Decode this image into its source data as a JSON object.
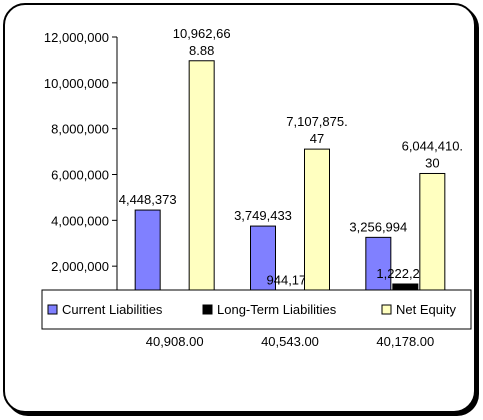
{
  "chart_data": {
    "type": "bar",
    "categories": [
      "40,908.00",
      "40,543.00",
      "40,178.00"
    ],
    "series": [
      {
        "name": "Current Liabilities",
        "color": "#8080ff",
        "values": [
          4448373,
          3749433,
          3256994
        ],
        "labels": [
          [
            "4,448,373"
          ],
          [
            "3,749,433"
          ],
          [
            "3,256,994"
          ]
        ]
      },
      {
        "name": "Long-Term Liabilities",
        "color": "#000000",
        "values": [
          0,
          944171,
          1222222
        ],
        "labels": [
          [],
          [
            "944,171"
          ],
          [
            "1,222,222"
          ]
        ]
      },
      {
        "name": "Net Equity",
        "color": "#ffffc0",
        "values": [
          10962668.88,
          7107875.47,
          6044410.3
        ],
        "labels": [
          [
            "10,962,66",
            "8.88"
          ],
          [
            "7,107,875.",
            "47"
          ],
          [
            "6,044,410.",
            "30"
          ]
        ]
      }
    ],
    "yticks": [
      "2,000,000",
      "4,000,000",
      "6,000,000",
      "8,000,000",
      "10,000,000",
      "12,000,000"
    ],
    "ylim": [
      0,
      12000000
    ],
    "grid": false,
    "legend": "bottom"
  }
}
